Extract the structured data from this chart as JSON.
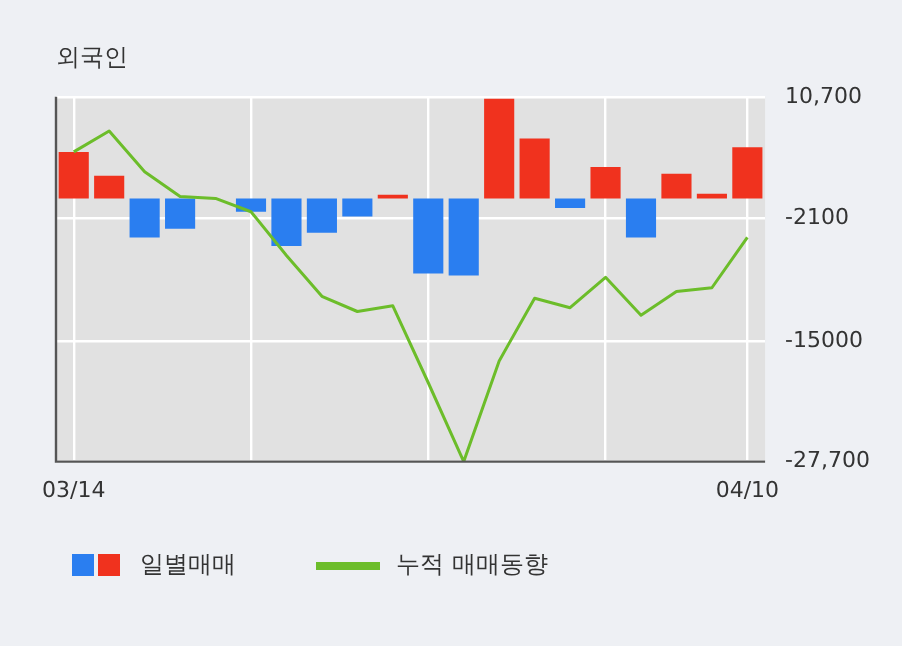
{
  "chart_data": {
    "type": "bar",
    "title": "외국인",
    "categories": [
      "03/14",
      null,
      null,
      null,
      null,
      null,
      null,
      null,
      null,
      null,
      null,
      null,
      null,
      null,
      null,
      null,
      null,
      null,
      null,
      "04/10"
    ],
    "series": [
      {
        "name": "일별매매",
        "colors": [
          "#f0321e",
          "#f0321e",
          "#2a7ef0",
          "#2a7ef0",
          "#2a7ef0",
          "#2a7ef0",
          "#2a7ef0",
          "#2a7ef0",
          "#2a7ef0",
          "#f0321e",
          "#2a7ef0",
          "#2a7ef0",
          "#f0321e",
          "#f0321e",
          "#2a7ef0",
          "#f0321e",
          "#2a7ef0",
          "#f0321e",
          "#f0321e",
          "#f0321e"
        ],
        "values": [
          4900,
          2400,
          -4100,
          -3200,
          0,
          -1400,
          -5000,
          -3600,
          -1900,
          400,
          -7900,
          -8100,
          10500,
          6300,
          -1000,
          3300,
          -4100,
          2600,
          500,
          5400
        ]
      },
      {
        "name": "누적 매매동향",
        "type": "line",
        "color": "#6cbd2a",
        "values": [
          4900,
          7100,
          2800,
          200,
          0,
          -1400,
          -6000,
          -10300,
          -11900,
          -11300,
          -19400,
          -27700,
          -17100,
          -10500,
          -11500,
          -8300,
          -12300,
          -9800,
          -9400,
          -4100
        ]
      }
    ],
    "ylim": [
      -27700,
      10700
    ],
    "yticks": [
      {
        "value": 10700,
        "label": "10,700"
      },
      -2100,
      -15000,
      {
        "value": -27700,
        "label": "-27,700"
      }
    ],
    "grid": true,
    "legend": "bottom"
  }
}
